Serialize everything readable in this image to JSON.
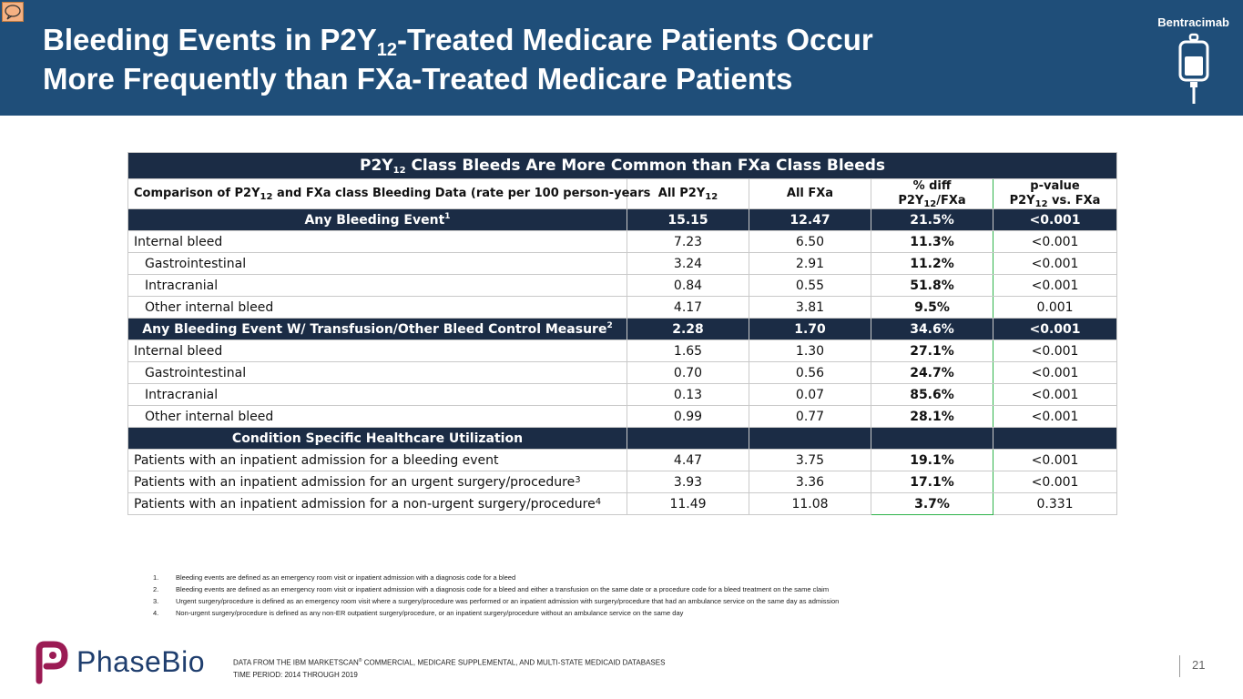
{
  "header": {
    "title_line1_pre": "Bleeding Events in P2Y",
    "title_line1_sub": "12",
    "title_line1_post": "-Treated Medicare Patients Occur",
    "title_line2": "More Frequently than FXa-Treated Medicare Patients",
    "brand": "Bentracimab",
    "brand_icon": "iv-bag-icon",
    "comment_icon": "comment-icon"
  },
  "table": {
    "caption_pre": "P2Y",
    "caption_sub": "12",
    "caption_post": " Class Bleeds Are More Common than FXa Class Bleeds",
    "columns": {
      "c1_pre": "Comparison of P2Y",
      "c1_sub": "12",
      "c1_post": " and FXa class Bleeding Data (rate per 100 person-years",
      "c2_pre": "All P2Y",
      "c2_sub": "12",
      "c3": "All FXa",
      "c4_line1": "% diff",
      "c4_pre": "P2Y",
      "c4_sub": "12",
      "c4_post": "/FXa",
      "c5_line1": "p-value",
      "c5_pre": "P2Y",
      "c5_sub": "12",
      "c5_post": " vs. FXa"
    },
    "section1": {
      "label": "Any Bleeding Event",
      "sup": "1",
      "p2y": "15.15",
      "fxa": "12.47",
      "diff": "21.5%",
      "p": "<0.001"
    },
    "rows1": [
      {
        "label": "Internal bleed",
        "p2y": "7.23",
        "fxa": "6.50",
        "diff": "11.3%",
        "p": "<0.001"
      },
      {
        "label": "Gastrointestinal",
        "p2y": "3.24",
        "fxa": "2.91",
        "diff": "11.2%",
        "p": "<0.001"
      },
      {
        "label": "Intracranial",
        "p2y": "0.84",
        "fxa": "0.55",
        "diff": "51.8%",
        "p": "<0.001"
      },
      {
        "label": "Other internal bleed",
        "p2y": "4.17",
        "fxa": "3.81",
        "diff": "9.5%",
        "p": "0.001"
      }
    ],
    "section2": {
      "label": "Any Bleeding Event W/ Transfusion/Other Bleed Control Measure",
      "sup": "2",
      "p2y": "2.28",
      "fxa": "1.70",
      "diff": "34.6%",
      "p": "<0.001"
    },
    "rows2": [
      {
        "label": "Internal bleed",
        "p2y": "1.65",
        "fxa": "1.30",
        "diff": "27.1%",
        "p": "<0.001"
      },
      {
        "label": "Gastrointestinal",
        "p2y": "0.70",
        "fxa": "0.56",
        "diff": "24.7%",
        "p": "<0.001"
      },
      {
        "label": "Intracranial",
        "p2y": "0.13",
        "fxa": "0.07",
        "diff": "85.6%",
        "p": "<0.001"
      },
      {
        "label": "Other internal bleed",
        "p2y": "0.99",
        "fxa": "0.77",
        "diff": "28.1%",
        "p": "<0.001"
      }
    ],
    "section3": {
      "label": "Condition Specific Healthcare Utilization"
    },
    "rows3": [
      {
        "label": "Patients with an inpatient admission for a bleeding event",
        "sup": "",
        "p2y": "4.47",
        "fxa": "3.75",
        "diff": "19.1%",
        "p": "<0.001"
      },
      {
        "label": "Patients with an inpatient admission for an urgent surgery/procedure",
        "sup": "3",
        "p2y": "3.93",
        "fxa": "3.36",
        "diff": "17.1%",
        "p": "<0.001"
      },
      {
        "label": "Patients with an inpatient admission for a non-urgent surgery/procedure",
        "sup": "4",
        "p2y": "11.49",
        "fxa": "11.08",
        "diff": "3.7%",
        "p": "0.331"
      }
    ]
  },
  "footnotes": [
    {
      "num": "1.",
      "text": "Bleeding events are defined as an emergency room visit or inpatient admission with a diagnosis code for a bleed"
    },
    {
      "num": "2.",
      "text": "Bleeding events are defined as an emergency room visit or inpatient admission with a diagnosis code for a bleed and either a transfusion on the same date or a procedure code for a bleed treatment on the same claim"
    },
    {
      "num": "3.",
      "text": "Urgent surgery/procedure is defined as an emergency room visit where a surgery/procedure was performed or an inpatient admission with surgery/procedure that had an ambulance service on the same day as admission"
    },
    {
      "num": "4.",
      "text": "Non-urgent surgery/procedure is defined as any non-ER outpatient surgery/procedure, or an inpatient surgery/procedure without an ambulance service on the same day"
    }
  ],
  "footer": {
    "logo_text": "PhaseBio",
    "source_pre": "DATA FROM THE IBM MARKETSCAN",
    "source_mark": "®",
    "source_post": " COMMERCIAL, MEDICARE SUPPLEMENTAL, AND MULTI-STATE MEDICAID DATABASES",
    "period": "TIME PERIOD: 2014 THROUGH 2019",
    "page": "21"
  }
}
